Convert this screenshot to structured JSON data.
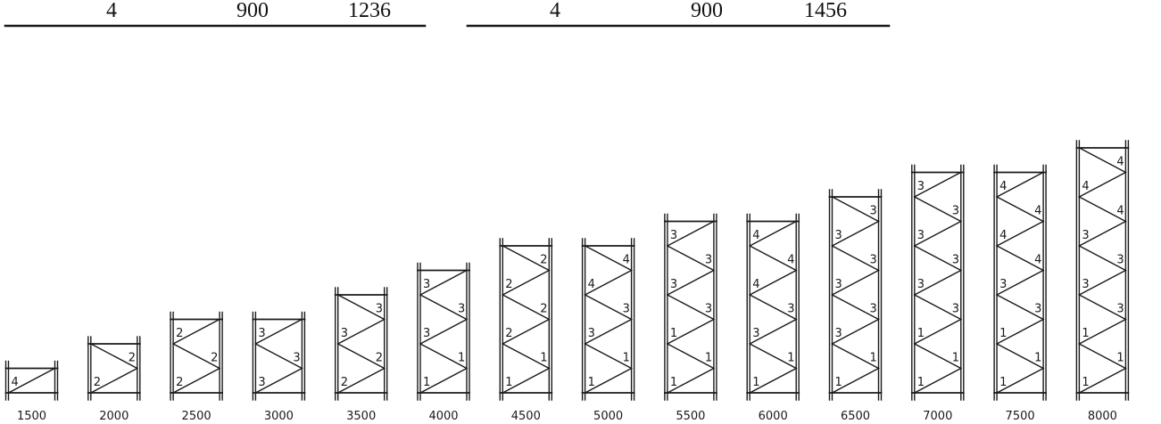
{
  "headers": [
    {
      "values": [
        "4",
        "900",
        "1236"
      ]
    },
    {
      "values": [
        "4",
        "900",
        "1456"
      ]
    }
  ],
  "frames": [
    {
      "height": "1500",
      "braces": [
        "4"
      ]
    },
    {
      "height": "2000",
      "braces": [
        "2",
        "2"
      ]
    },
    {
      "height": "2500",
      "braces": [
        "2",
        "2",
        "2"
      ]
    },
    {
      "height": "3000",
      "braces": [
        "3",
        "3",
        "3"
      ]
    },
    {
      "height": "3500",
      "braces": [
        "2",
        "2",
        "3",
        "3"
      ]
    },
    {
      "height": "4000",
      "braces": [
        "1",
        "1",
        "3",
        "3",
        "3"
      ]
    },
    {
      "height": "4500",
      "braces": [
        "1",
        "1",
        "2",
        "2",
        "2",
        "2"
      ]
    },
    {
      "height": "5000",
      "braces": [
        "1",
        "1",
        "3",
        "3",
        "4",
        "4"
      ]
    },
    {
      "height": "5500",
      "braces": [
        "1",
        "1",
        "1",
        "3",
        "3",
        "3",
        "3"
      ]
    },
    {
      "height": "6000",
      "braces": [
        "1",
        "1",
        "3",
        "3",
        "4",
        "4",
        "4"
      ]
    },
    {
      "height": "6500",
      "braces": [
        "1",
        "1",
        "3",
        "3",
        "3",
        "3",
        "3",
        "3"
      ]
    },
    {
      "height": "7000",
      "braces": [
        "1",
        "1",
        "1",
        "3",
        "3",
        "3",
        "3",
        "3",
        "3"
      ]
    },
    {
      "height": "7500",
      "braces": [
        "1",
        "1",
        "1",
        "3",
        "3",
        "4",
        "4",
        "4",
        "4"
      ]
    },
    {
      "height": "8000",
      "braces": [
        "1",
        "1",
        "1",
        "3",
        "3",
        "3",
        "3",
        "4",
        "4",
        "4"
      ]
    }
  ]
}
